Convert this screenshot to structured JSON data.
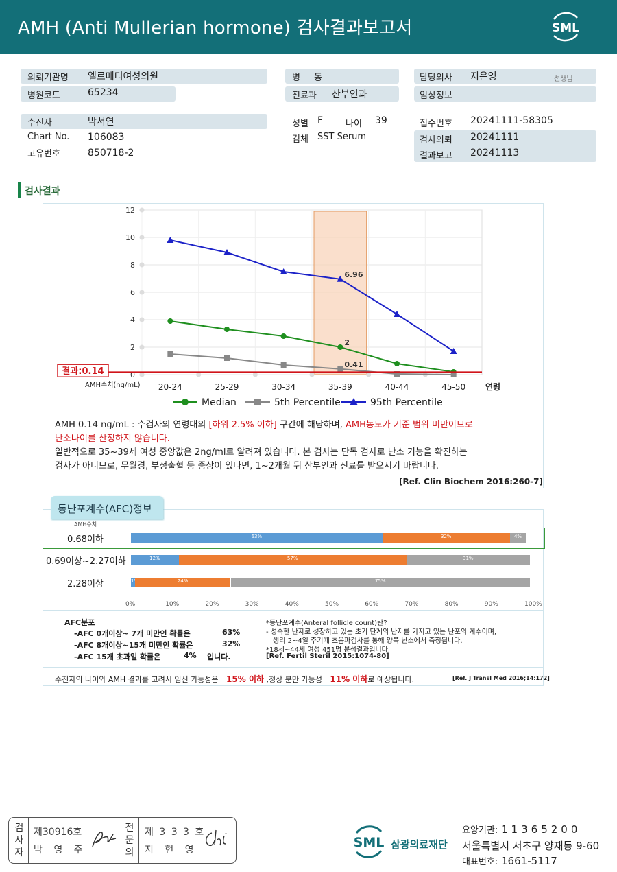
{
  "header": {
    "title": "AMH (Anti Mullerian hormone) 검사결과보고서",
    "logo_text": "SML"
  },
  "info": {
    "requesting_institution_label": "의뢰기관명",
    "requesting_institution": "엘르메디여성의원",
    "hospital_code_label": "병원코드",
    "hospital_code": "65234",
    "patient_label": "수진자",
    "patient_name": "박서연",
    "chart_no_label": "Chart No.",
    "chart_no": "106083",
    "unique_no_label": "고유번호",
    "unique_no": "850718-2",
    "ward_label": "병 동",
    "dept_label": "진료과",
    "dept": "산부인과",
    "sex_label": "성별",
    "sex": "F",
    "age_label": "나이",
    "age": "39",
    "specimen_label": "검체",
    "specimen": "SST Serum",
    "doctor_label": "담당의사",
    "doctor": "지은영",
    "doctor_suffix": "선생님",
    "clinical_label": "임상정보",
    "receipt_label": "접수번호",
    "receipt_no": "20241111-58305",
    "request_label": "검사의뢰",
    "request_date": "20241111",
    "report_label": "결과보고",
    "report_date": "20241113"
  },
  "result_section_title": "검사결과",
  "chart_data": {
    "type": "line",
    "categories": [
      "20-24",
      "25-29",
      "30-34",
      "35-39",
      "40-44",
      "45-50"
    ],
    "x_axis_suffix": "연령",
    "y_axis_caption": "AMH수치(ng/mL)",
    "ylim": [
      0,
      12
    ],
    "yticks": [
      0,
      2,
      4,
      6,
      8,
      10,
      12
    ],
    "highlight_category": "35-39",
    "result_line": {
      "value": 0.14,
      "label": "결과:0.14",
      "color": "#d0141a"
    },
    "series": [
      {
        "name": "Median",
        "values": [
          3.9,
          3.3,
          2.8,
          2.0,
          0.8,
          0.2
        ],
        "color": "#1f8f1f",
        "marker": "circle"
      },
      {
        "name": "5th Percentile",
        "values": [
          1.5,
          1.2,
          0.7,
          0.41,
          0.05,
          0.0
        ],
        "color": "#888888",
        "marker": "square"
      },
      {
        "name": "95th Percentile",
        "values": [
          9.8,
          8.9,
          7.5,
          6.96,
          4.4,
          1.7
        ],
        "color": "#1c22c8",
        "marker": "triangle"
      }
    ],
    "data_labels": [
      {
        "series": "95th Percentile",
        "category": "35-39",
        "text": "6.96"
      },
      {
        "series": "Median",
        "category": "35-39",
        "text": "2"
      },
      {
        "series": "5th Percentile",
        "category": "35-39",
        "text": "0.41"
      }
    ]
  },
  "interpretation": {
    "l1_a": "AMH 0.14 ng/mL : 수검자의 연령대의 ",
    "l1_b": "[하위 2.5% 이하]",
    "l1_c": " 구간에 해당하며, ",
    "l1_d": "AMH농도가 기준 범위 미만이므로",
    "l2": "난소나이를 산정하지 않습니다.",
    "l3": "일반적으로 35~39세 여성 중앙값은 2ng/ml로 알려져 있습니다. 본 검사는 단독 검사로 난소 기능을 확진하는",
    "l4": "검사가 아니므로, 무월경, 부정출혈 등 증상이 있다면, 1~2개월 뒤 산부인과 진료를 받으시기 바랍니다.",
    "ref": "[Ref. Clin Biochem 2016:260-7]"
  },
  "afc": {
    "tab_title": "동난포계수(AFC)정보",
    "amh_caption": "AMH수치",
    "rows": [
      {
        "label": "0.68이하",
        "segments": [
          63,
          32,
          4
        ],
        "texts": [
          "63%",
          "32%",
          "4%"
        ]
      },
      {
        "label": "0.69이상~2.27이하",
        "segments": [
          12,
          57,
          31
        ],
        "texts": [
          "12%",
          "57%",
          "31%"
        ]
      },
      {
        "label": "2.28이상",
        "segments": [
          1,
          24,
          75
        ],
        "texts": [
          "1%",
          "24%",
          "75%"
        ]
      }
    ],
    "colors": [
      "#5b9bd5",
      "#ed7d31",
      "#a5a5a5"
    ],
    "axis_ticks": [
      "0%",
      "10%",
      "20%",
      "30%",
      "40%",
      "50%",
      "60%",
      "70%",
      "80%",
      "90%",
      "100%"
    ],
    "distribution_title": "AFC분포",
    "dist": [
      {
        "text": "-AFC 0개이상~ 7개 미만인 확률은",
        "value": "63%"
      },
      {
        "text": "-AFC 8개이상~15개 미만인 확률은",
        "value": "32%"
      },
      {
        "text": "-AFC 15개 초과일 확률은",
        "value": "4%",
        "suffix": "입니다."
      }
    ],
    "note1": "*동난포계수(Anteral follicle count)란?",
    "note2": "- 성숙한 난자로 성장하고 있는 초기 단계의 난자를 가지고 있는 난포의 계수이며,",
    "note3": "생리 2~4일 주기때 초음파검사를 통해 양쪽 난소에서 측정됩니다.",
    "note4": "*18세~44세 여성 451명 분석결과입니다.",
    "note5": "[Ref. Fertil Steril 2015:1074-80]"
  },
  "pregnancy": {
    "a": "수진자의 나이와 AMH 결과를 고려시 임신 가능성은",
    "b": "15% 이하",
    "c": ",정상 분만 가능성",
    "d": "11% 이하",
    "e": "로 예상됩니다.",
    "ref": "[Ref. J Transl Med 2016;14:172]"
  },
  "signature": {
    "inspector_label": "검사자",
    "inspector_no": "제30916호",
    "inspector_name": "박 영 주",
    "specialist_label": "전문의",
    "specialist_no": "제 3 3 3 호",
    "specialist_name": "지 현 영"
  },
  "institution": {
    "name": "삼광의료재단",
    "code_label": "요양기관:",
    "code": "11365200",
    "address": "서울특별시 서초구 양재동 9-60",
    "phone_label": "대표번호:",
    "phone": "1661-5117"
  }
}
